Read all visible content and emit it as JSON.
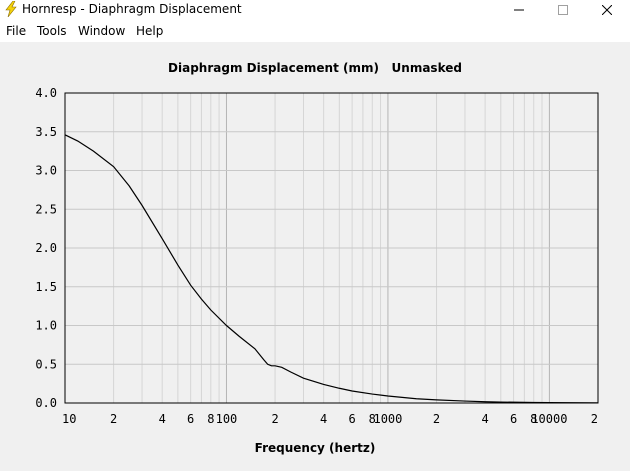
{
  "window": {
    "title": "Hornresp - Diaphragm Displacement",
    "app_icon": "lightning-bolt-icon",
    "controls": [
      "minimize-icon",
      "maximize-icon",
      "close-icon"
    ]
  },
  "menu": [
    "File",
    "Tools",
    "Window",
    "Help"
  ],
  "chart_title": "Diaphragm Displacement (mm)",
  "chart_mode": "Unmasked",
  "chart_data": {
    "type": "line",
    "xscale": "log",
    "xlim": [
      10,
      20000
    ],
    "ylim": [
      0,
      4
    ],
    "xlabel": "Frequency (hertz)",
    "ylabel": "",
    "grid": true,
    "x_tick_labels": [
      "10",
      "2",
      "4",
      "6",
      "8",
      "100",
      "2",
      "4",
      "6",
      "8",
      "1000",
      "2",
      "4",
      "6",
      "8",
      "10000",
      "2"
    ],
    "y_tick_labels": [
      "4.0",
      "3.5",
      "3.0",
      "2.5",
      "2.0",
      "1.5",
      "1.0",
      "0.5",
      "0.0"
    ],
    "series": [
      {
        "line_color": "#000000",
        "x": [
          10,
          12,
          15,
          20,
          25,
          30,
          40,
          50,
          60,
          70,
          80,
          100,
          120,
          150,
          170,
          180,
          190,
          200,
          220,
          250,
          300,
          400,
          500,
          600,
          800,
          1000,
          1500,
          2000,
          3000,
          4000,
          5000,
          8000,
          10000,
          20000
        ],
        "y": [
          3.46,
          3.38,
          3.25,
          3.05,
          2.8,
          2.55,
          2.12,
          1.78,
          1.52,
          1.34,
          1.2,
          1.0,
          0.86,
          0.7,
          0.56,
          0.5,
          0.48,
          0.48,
          0.46,
          0.4,
          0.32,
          0.24,
          0.19,
          0.155,
          0.115,
          0.09,
          0.055,
          0.04,
          0.025,
          0.016,
          0.012,
          0.007,
          0.005,
          0.002
        ]
      }
    ]
  }
}
